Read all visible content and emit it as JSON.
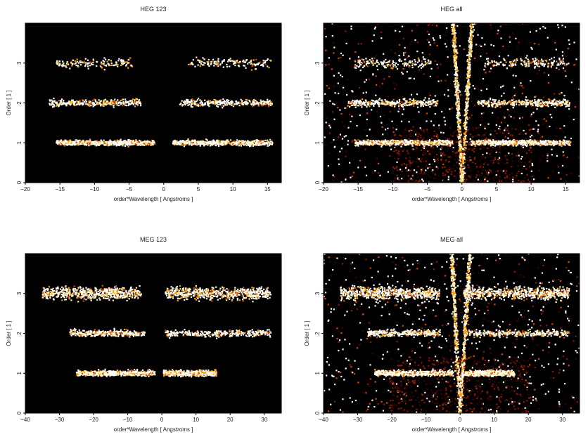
{
  "chart_data": [
    {
      "type": "heatmap",
      "title": "HEG 123",
      "xlabel": "order*Wavelength [ Angstroms ]",
      "ylabel": "Order [ 1 ]",
      "xlim": [
        -20,
        17
      ],
      "ylim": [
        0,
        4
      ],
      "xticks": [
        -20,
        -15,
        -10,
        -5,
        0,
        5,
        10,
        15
      ],
      "yticks": [
        0,
        1,
        2,
        3
      ],
      "background": "#000000",
      "colormap": [
        "#3a0500",
        "#8a1a00",
        "#d84a00",
        "#ffa000",
        "#fff2b0",
        "#ffffff"
      ],
      "bands": [
        {
          "order": 1,
          "x_range": [
            -15.5,
            -1.3
          ],
          "density": "high"
        },
        {
          "order": 1,
          "x_range": [
            1.3,
            15.7
          ],
          "density": "high"
        },
        {
          "order": 2,
          "x_range": [
            -16.5,
            -3.3
          ],
          "density": "medium"
        },
        {
          "order": 2,
          "x_range": [
            2.3,
            15.7
          ],
          "density": "medium"
        },
        {
          "order": 3,
          "x_range": [
            -15.5,
            -4.5
          ],
          "density": "low"
        },
        {
          "order": 3,
          "x_range": [
            3.3,
            15.5
          ],
          "density": "low"
        }
      ],
      "diagonal_artifacts": false
    },
    {
      "type": "heatmap",
      "title": "HEG all",
      "xlabel": "order*Wavelength [ Angstroms ]",
      "ylabel": "Order [ 1 ]",
      "xlim": [
        -20,
        17
      ],
      "ylim": [
        0,
        4
      ],
      "xticks": [
        -20,
        -15,
        -10,
        -5,
        0,
        5,
        10,
        15
      ],
      "yticks": [
        0,
        1,
        2,
        3
      ],
      "background": "#000000",
      "colormap": [
        "#3a0500",
        "#8a1a00",
        "#d84a00",
        "#ffa000",
        "#fff2b0",
        "#ffffff"
      ],
      "bands": [
        {
          "order": 1,
          "x_range": [
            -15.5,
            -1.3
          ],
          "density": "high"
        },
        {
          "order": 1,
          "x_range": [
            1.3,
            15.7
          ],
          "density": "high"
        },
        {
          "order": 2,
          "x_range": [
            -16.5,
            -3.3
          ],
          "density": "medium"
        },
        {
          "order": 2,
          "x_range": [
            2.3,
            15.7
          ],
          "density": "medium"
        },
        {
          "order": 3,
          "x_range": [
            -15.5,
            -4.5
          ],
          "density": "low"
        },
        {
          "order": 3,
          "x_range": [
            3.3,
            15.5
          ],
          "density": "low"
        }
      ],
      "diagonal_artifacts": true
    },
    {
      "type": "heatmap",
      "title": "MEG 123",
      "xlabel": "order*Wavelength [ Angstroms ]",
      "ylabel": "Order [ 1 ]",
      "xlim": [
        -40,
        35
      ],
      "ylim": [
        0,
        4
      ],
      "xticks": [
        -40,
        -30,
        -20,
        -10,
        0,
        10,
        20,
        30
      ],
      "yticks": [
        0,
        1,
        2,
        3
      ],
      "background": "#000000",
      "colormap": [
        "#3a0500",
        "#8a1a00",
        "#d84a00",
        "#ffa000",
        "#fff2b0",
        "#ffffff"
      ],
      "bands": [
        {
          "order": 1,
          "x_range": [
            -25,
            -2
          ],
          "density": "high"
        },
        {
          "order": 1,
          "x_range": [
            0.5,
            16
          ],
          "density": "high"
        },
        {
          "order": 2,
          "x_range": [
            -27,
            -5
          ],
          "density": "medium"
        },
        {
          "order": 2,
          "x_range": [
            1,
            32
          ],
          "density": "medium"
        },
        {
          "order": 3,
          "x_range": [
            -35,
            -6
          ],
          "density": "high"
        },
        {
          "order": 3,
          "x_range": [
            1,
            32
          ],
          "density": "high"
        }
      ],
      "diagonal_artifacts": false
    },
    {
      "type": "heatmap",
      "title": "MEG all",
      "xlabel": "order*Wavelength [ Angstroms ]",
      "ylabel": "Order [ 1 ]",
      "xlim": [
        -40,
        35
      ],
      "ylim": [
        0,
        4
      ],
      "xticks": [
        -40,
        -30,
        -20,
        -10,
        0,
        10,
        20,
        30
      ],
      "yticks": [
        0,
        1,
        2,
        3
      ],
      "background": "#000000",
      "colormap": [
        "#3a0500",
        "#8a1a00",
        "#d84a00",
        "#ffa000",
        "#fff2b0",
        "#ffffff"
      ],
      "bands": [
        {
          "order": 1,
          "x_range": [
            -25,
            -2
          ],
          "density": "high"
        },
        {
          "order": 1,
          "x_range": [
            0.5,
            16
          ],
          "density": "high"
        },
        {
          "order": 2,
          "x_range": [
            -27,
            -5
          ],
          "density": "medium"
        },
        {
          "order": 2,
          "x_range": [
            1,
            32
          ],
          "density": "medium"
        },
        {
          "order": 3,
          "x_range": [
            -35,
            -6
          ],
          "density": "high"
        },
        {
          "order": 3,
          "x_range": [
            1,
            32
          ],
          "density": "high"
        }
      ],
      "diagonal_artifacts": true
    }
  ]
}
